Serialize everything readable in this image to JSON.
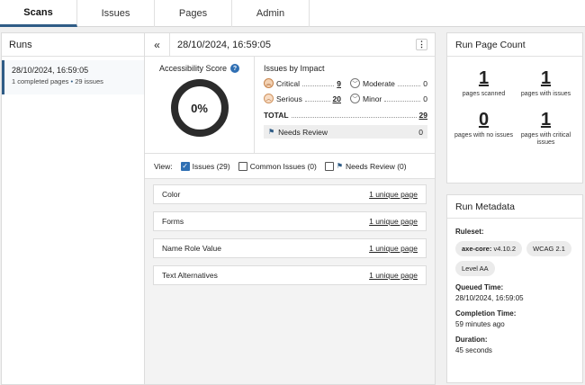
{
  "tabs": [
    "Scans",
    "Issues",
    "Pages",
    "Admin"
  ],
  "runs": {
    "title": "Runs",
    "item": {
      "date": "28/10/2024, 16:59:05",
      "pages": "1 completed pages",
      "issues": "29 issues"
    }
  },
  "detail": {
    "collapse_icon": "«",
    "title": "28/10/2024, 16:59:05",
    "menu_icon": "⋮",
    "score_label": "Accessibility Score",
    "score_value": "0%",
    "impact_title": "Issues by Impact",
    "impact": {
      "critical_label": "Critical",
      "critical_value": "9",
      "moderate_label": "Moderate",
      "moderate_value": "0",
      "serious_label": "Serious",
      "serious_value": "20",
      "minor_label": "Minor",
      "minor_value": "0"
    },
    "total_label": "TOTAL",
    "total_value": "29",
    "review_label": "Needs Review",
    "review_value": "0",
    "view_label": "View:",
    "filters": {
      "issues": "Issues (29)",
      "common": "Common Issues (0)",
      "review": "Needs Review (0)"
    },
    "rules": [
      {
        "name": "Color",
        "link": "1 unique page"
      },
      {
        "name": "Forms",
        "link": "1 unique page"
      },
      {
        "name": "Name Role Value",
        "link": "1 unique page"
      },
      {
        "name": "Text Alternatives",
        "link": "1 unique page"
      }
    ]
  },
  "page_count": {
    "title": "Run Page Count",
    "stats": [
      {
        "value": "1",
        "label": "pages scanned"
      },
      {
        "value": "1",
        "label": "pages with issues"
      },
      {
        "value": "0",
        "label": "pages with no issues"
      },
      {
        "value": "1",
        "label": "pages with critical issues"
      }
    ]
  },
  "metadata": {
    "title": "Run Metadata",
    "ruleset_label": "Ruleset:",
    "chip_engine_name": "axe-core:",
    "chip_engine_version": "v4.10.2",
    "chip_wcag": "WCAG 2.1",
    "chip_level": "Level AA",
    "queued_label": "Queued Time:",
    "queued_value": "28/10/2024, 16:59:05",
    "completion_label": "Completion Time:",
    "completion_value": "59 minutes ago",
    "duration_label": "Duration:",
    "duration_value": "45 seconds"
  },
  "colors": {
    "accent": "#2f5c86",
    "checkbox": "#2f6fb3"
  }
}
